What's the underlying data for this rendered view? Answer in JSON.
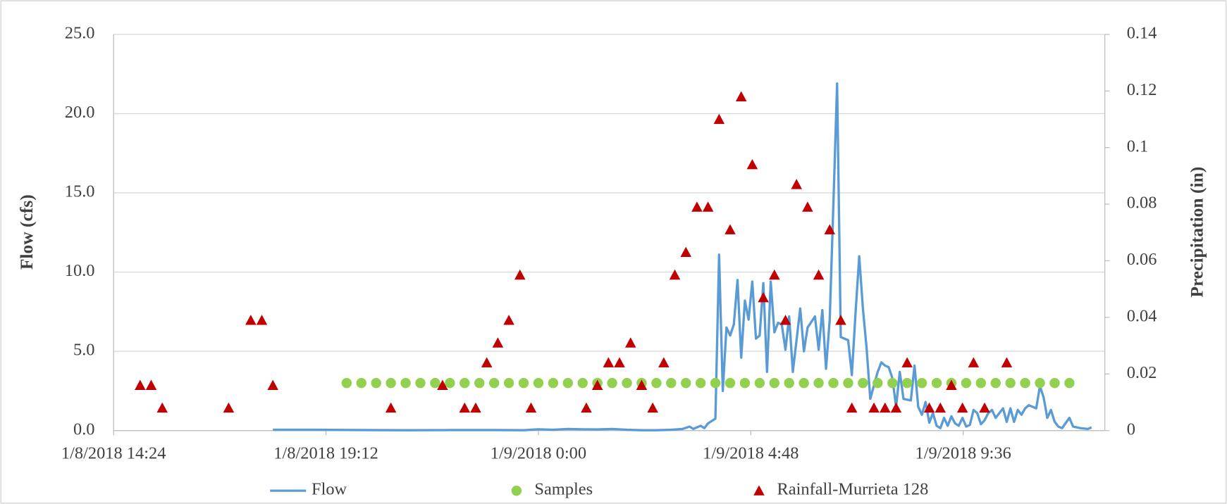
{
  "chart_data": {
    "type": "combo",
    "xlim": [
      "1/8/2018 14:24",
      "1/9/2018 12:48"
    ],
    "xticks": [
      "1/8/2018 14:24",
      "1/8/2018 19:12",
      "1/9/2018 0:00",
      "1/9/2018 4:48",
      "1/9/2018 9:36"
    ],
    "ylim": [
      0,
      25
    ],
    "yticks": [
      {
        "value": 0,
        "label": "0.0"
      },
      {
        "value": 5,
        "label": "5.0"
      },
      {
        "value": 10,
        "label": "10.0"
      },
      {
        "value": 15,
        "label": "15.0"
      },
      {
        "value": 20,
        "label": "20.0"
      },
      {
        "value": 25,
        "label": "25.0"
      }
    ],
    "y2lim": [
      0,
      0.14
    ],
    "y2ticks": [
      0,
      0.02,
      0.04,
      0.06,
      0.08,
      0.1,
      0.12,
      0.14
    ],
    "ylabel": "Flow (cfs)",
    "y2label": "Precipitation (in)",
    "grid": true,
    "legend": "bottom",
    "series": [
      {
        "name": "Flow",
        "type": "line",
        "color": "#5b9bd5",
        "x": [
          "1/8/2018 18:00",
          "1/8/2018 19:00",
          "1/8/2018 20:00",
          "1/8/2018 21:00",
          "1/8/2018 22:00",
          "1/8/2018 23:00",
          "1/8/2018 23:40",
          "1/9/2018 0:00",
          "1/9/2018 0:20",
          "1/9/2018 0:40",
          "1/9/2018 1:00",
          "1/9/2018 1:20",
          "1/9/2018 1:40",
          "1/9/2018 2:00",
          "1/9/2018 2:20",
          "1/9/2018 2:40",
          "1/9/2018 3:00",
          "1/9/2018 3:15",
          "1/9/2018 3:25",
          "1/9/2018 3:30",
          "1/9/2018 3:35",
          "1/9/2018 3:40",
          "1/9/2018 3:45",
          "1/9/2018 3:50",
          "1/9/2018 4:00",
          "1/9/2018 4:05",
          "1/9/2018 4:10",
          "1/9/2018 4:15",
          "1/9/2018 4:20",
          "1/9/2018 4:25",
          "1/9/2018 4:30",
          "1/9/2018 4:35",
          "1/9/2018 4:40",
          "1/9/2018 4:45",
          "1/9/2018 4:50",
          "1/9/2018 4:55",
          "1/9/2018 5:00",
          "1/9/2018 5:05",
          "1/9/2018 5:10",
          "1/9/2018 5:15",
          "1/9/2018 5:20",
          "1/9/2018 5:25",
          "1/9/2018 5:30",
          "1/9/2018 5:35",
          "1/9/2018 5:40",
          "1/9/2018 5:45",
          "1/9/2018 5:55",
          "1/9/2018 6:00",
          "1/9/2018 6:05",
          "1/9/2018 6:15",
          "1/9/2018 6:20",
          "1/9/2018 6:25",
          "1/9/2018 6:30",
          "1/9/2018 6:35",
          "1/9/2018 6:40",
          "1/9/2018 6:45",
          "1/9/2018 6:50",
          "1/9/2018 7:00",
          "1/9/2018 7:05",
          "1/9/2018 7:10",
          "1/9/2018 7:15",
          "1/9/2018 7:20",
          "1/9/2018 7:25",
          "1/9/2018 7:30",
          "1/9/2018 7:40",
          "1/9/2018 7:45",
          "1/9/2018 7:50",
          "1/9/2018 7:55",
          "1/9/2018 8:00",
          "1/9/2018 8:05",
          "1/9/2018 8:10",
          "1/9/2018 8:15",
          "1/9/2018 8:25",
          "1/9/2018 8:30",
          "1/9/2018 8:35",
          "1/9/2018 8:40",
          "1/9/2018 8:45",
          "1/9/2018 8:50",
          "1/9/2018 8:55",
          "1/9/2018 9:00",
          "1/9/2018 9:05",
          "1/9/2018 9:10",
          "1/9/2018 9:15",
          "1/9/2018 9:20",
          "1/9/2018 9:25",
          "1/9/2018 9:30",
          "1/9/2018 9:35",
          "1/9/2018 9:40",
          "1/9/2018 9:45",
          "1/9/2018 9:50",
          "1/9/2018 9:55",
          "1/9/2018 10:00",
          "1/9/2018 10:05",
          "1/9/2018 10:10",
          "1/9/2018 10:15",
          "1/9/2018 10:20",
          "1/9/2018 10:30",
          "1/9/2018 10:35",
          "1/9/2018 10:40",
          "1/9/2018 10:45",
          "1/9/2018 10:50",
          "1/9/2018 10:55",
          "1/9/2018 11:00",
          "1/9/2018 11:05",
          "1/9/2018 11:10",
          "1/9/2018 11:15",
          "1/9/2018 11:20",
          "1/9/2018 11:25",
          "1/9/2018 11:30",
          "1/9/2018 11:35",
          "1/9/2018 11:40",
          "1/9/2018 11:45",
          "1/9/2018 11:50",
          "1/9/2018 12:00",
          "1/9/2018 12:05",
          "1/9/2018 12:15",
          "1/9/2018 12:25",
          "1/9/2018 12:30"
        ],
        "values": [
          0.05,
          0.05,
          0.03,
          0.02,
          0.03,
          0.03,
          0.02,
          0.08,
          0.05,
          0.1,
          0.08,
          0.07,
          0.1,
          0.05,
          0.02,
          0.02,
          0.05,
          0.1,
          0.25,
          0.1,
          0.2,
          0.3,
          0.15,
          0.45,
          0.75,
          11.1,
          2.5,
          6.5,
          6.0,
          6.7,
          9.5,
          4.6,
          8.2,
          7.0,
          9.4,
          5.8,
          6.0,
          9.3,
          3.7,
          9.4,
          6.2,
          6.8,
          6.7,
          5.1,
          7.2,
          3.7,
          7.7,
          5.0,
          6.5,
          7.2,
          5.1,
          7.6,
          3.9,
          7.0,
          14.3,
          21.9,
          5.9,
          5.7,
          3.5,
          7.4,
          11.0,
          7.7,
          5.2,
          2.0,
          3.7,
          4.3,
          4.1,
          4.0,
          3.3,
          1.5,
          3.7,
          2.0,
          1.9,
          4.1,
          1.5,
          1.0,
          1.8,
          0.5,
          1.1,
          0.3,
          0.15,
          0.8,
          0.3,
          0.9,
          0.45,
          0.3,
          0.8,
          0.25,
          0.35,
          1.3,
          1.1,
          0.4,
          0.65,
          1.1,
          1.3,
          0.8,
          1.4,
          0.55,
          1.4,
          0.55,
          1.3,
          1.0,
          1.4,
          1.6,
          1.5,
          1.4,
          2.8,
          2.1,
          0.8,
          1.3,
          0.55,
          0.25,
          0.15,
          0.8,
          0.25,
          0.15,
          0.1,
          0.2
        ]
      },
      {
        "name": "Samples",
        "type": "scatter",
        "marker": "circle",
        "color": "#92d050",
        "x": [
          "1/8/2018 19:40",
          "1/8/2018 20:00",
          "1/8/2018 20:20",
          "1/8/2018 20:40",
          "1/8/2018 21:00",
          "1/8/2018 21:20",
          "1/8/2018 21:40",
          "1/8/2018 22:00",
          "1/8/2018 22:20",
          "1/8/2018 22:40",
          "1/8/2018 23:00",
          "1/8/2018 23:20",
          "1/8/2018 23:40",
          "1/9/2018 0:00",
          "1/9/2018 0:20",
          "1/9/2018 0:40",
          "1/9/2018 1:00",
          "1/9/2018 1:20",
          "1/9/2018 1:40",
          "1/9/2018 2:00",
          "1/9/2018 2:20",
          "1/9/2018 2:40",
          "1/9/2018 3:00",
          "1/9/2018 3:20",
          "1/9/2018 3:40",
          "1/9/2018 4:00",
          "1/9/2018 4:20",
          "1/9/2018 4:40",
          "1/9/2018 5:00",
          "1/9/2018 5:20",
          "1/9/2018 5:40",
          "1/9/2018 6:00",
          "1/9/2018 6:20",
          "1/9/2018 6:40",
          "1/9/2018 7:00",
          "1/9/2018 7:20",
          "1/9/2018 7:40",
          "1/9/2018 8:00",
          "1/9/2018 8:20",
          "1/9/2018 8:40",
          "1/9/2018 9:00",
          "1/9/2018 9:20",
          "1/9/2018 9:40",
          "1/9/2018 10:00",
          "1/9/2018 10:20",
          "1/9/2018 10:40",
          "1/9/2018 11:00",
          "1/9/2018 11:20",
          "1/9/2018 11:40",
          "1/9/2018 12:00"
        ],
        "values": [
          3,
          3,
          3,
          3,
          3,
          3,
          3,
          3,
          3,
          3,
          3,
          3,
          3,
          3,
          3,
          3,
          3,
          3,
          3,
          3,
          3,
          3,
          3,
          3,
          3,
          3,
          3,
          3,
          3,
          3,
          3,
          3,
          3,
          3,
          3,
          3,
          3,
          3,
          3,
          3,
          3,
          3,
          3,
          3,
          3,
          3,
          3,
          3,
          3,
          3
        ]
      },
      {
        "name": "Rainfall-Murrieta 128",
        "type": "scatter",
        "marker": "triangle",
        "color": "#c00000",
        "axis": "y2",
        "x": [
          "1/8/2018 15:00",
          "1/8/2018 15:15",
          "1/8/2018 15:30",
          "1/8/2018 17:00",
          "1/8/2018 17:30",
          "1/8/2018 17:45",
          "1/8/2018 18:00",
          "1/8/2018 20:40",
          "1/8/2018 21:50",
          "1/8/2018 22:20",
          "1/8/2018 22:35",
          "1/8/2018 22:50",
          "1/8/2018 23:05",
          "1/8/2018 23:20",
          "1/8/2018 23:35",
          "1/8/2018 23:50",
          "1/9/2018 1:05",
          "1/9/2018 1:20",
          "1/9/2018 1:35",
          "1/9/2018 1:50",
          "1/9/2018 2:05",
          "1/9/2018 2:20",
          "1/9/2018 2:35",
          "1/9/2018 2:50",
          "1/9/2018 3:05",
          "1/9/2018 3:20",
          "1/9/2018 3:35",
          "1/9/2018 3:50",
          "1/9/2018 4:05",
          "1/9/2018 4:20",
          "1/9/2018 4:35",
          "1/9/2018 4:50",
          "1/9/2018 5:05",
          "1/9/2018 5:20",
          "1/9/2018 5:35",
          "1/9/2018 5:50",
          "1/9/2018 6:05",
          "1/9/2018 6:20",
          "1/9/2018 6:35",
          "1/9/2018 6:50",
          "1/9/2018 7:05",
          "1/9/2018 7:35",
          "1/9/2018 7:50",
          "1/9/2018 8:05",
          "1/9/2018 8:20",
          "1/9/2018 8:50",
          "1/9/2018 9:05",
          "1/9/2018 9:20",
          "1/9/2018 9:35",
          "1/9/2018 9:50",
          "1/9/2018 10:05",
          "1/9/2018 10:35"
        ],
        "values": [
          0.016,
          0.016,
          0.008,
          0.008,
          0.039,
          0.039,
          0.016,
          0.008,
          0.016,
          0.008,
          0.008,
          0.024,
          0.031,
          0.039,
          0.055,
          0.008,
          0.008,
          0.016,
          0.024,
          0.024,
          0.031,
          0.016,
          0.008,
          0.024,
          0.055,
          0.063,
          0.079,
          0.079,
          0.11,
          0.071,
          0.118,
          0.094,
          0.047,
          0.055,
          0.039,
          0.087,
          0.079,
          0.055,
          0.071,
          0.039,
          0.008,
          0.008,
          0.008,
          0.008,
          0.024,
          0.008,
          0.008,
          0.016,
          0.008,
          0.024,
          0.008,
          0.024
        ]
      }
    ]
  }
}
